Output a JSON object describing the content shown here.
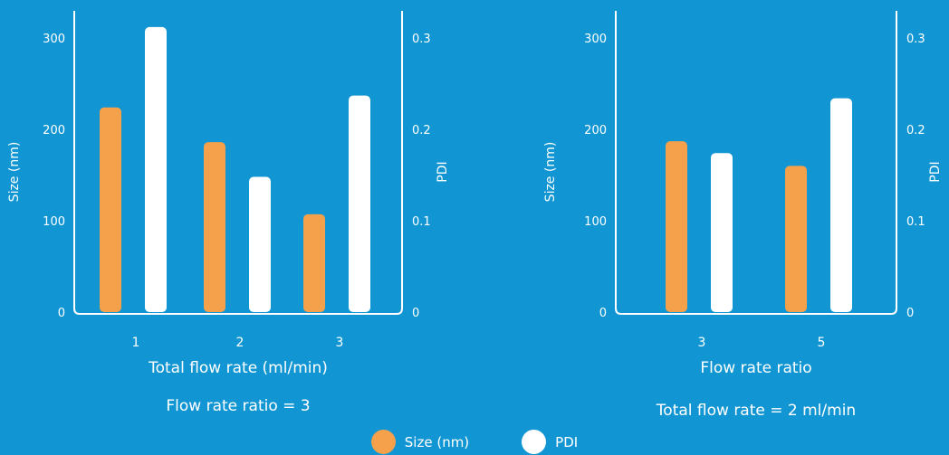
{
  "colors": {
    "background": "#1296d3",
    "size": "#f5a04b",
    "pdi": "#ffffff",
    "axis": "#ffffff"
  },
  "legend": [
    {
      "label": "Size (nm)",
      "color": "#f5a04b"
    },
    {
      "label": "PDI",
      "color": "#ffffff"
    }
  ],
  "chart_data": [
    {
      "type": "bar",
      "categories": [
        "1",
        "2",
        "3"
      ],
      "xlabel": "Total flow rate (ml/min)",
      "caption": "Flow rate ratio = 3",
      "ylabel": "Size (nm)",
      "y2label": "PDI",
      "ylim": [
        0,
        300
      ],
      "y2lim": [
        0,
        0.3
      ],
      "yticks": [
        "0",
        "100",
        "200",
        "300"
      ],
      "y2ticks": [
        "0",
        "0.1",
        "0.2",
        "0.3"
      ],
      "grid": false,
      "series": [
        {
          "name": "Size (nm)",
          "axis": "left",
          "values": [
            224,
            186,
            107
          ]
        },
        {
          "name": "PDI",
          "axis": "right",
          "values": [
            0.312,
            0.148,
            0.237
          ]
        }
      ]
    },
    {
      "type": "bar",
      "categories": [
        "3",
        "5"
      ],
      "xlabel": "Flow rate ratio",
      "caption": "Total flow rate = 2 ml/min",
      "ylabel": "Size (nm)",
      "y2label": "PDI",
      "ylim": [
        0,
        300
      ],
      "y2lim": [
        0,
        0.3
      ],
      "yticks": [
        "0",
        "100",
        "200",
        "300"
      ],
      "y2ticks": [
        "0",
        "0.1",
        "0.2",
        "0.3"
      ],
      "grid": false,
      "series": [
        {
          "name": "Size (nm)",
          "axis": "left",
          "values": [
            187,
            160
          ]
        },
        {
          "name": "PDI",
          "axis": "right",
          "values": [
            0.174,
            0.234
          ]
        }
      ]
    }
  ]
}
